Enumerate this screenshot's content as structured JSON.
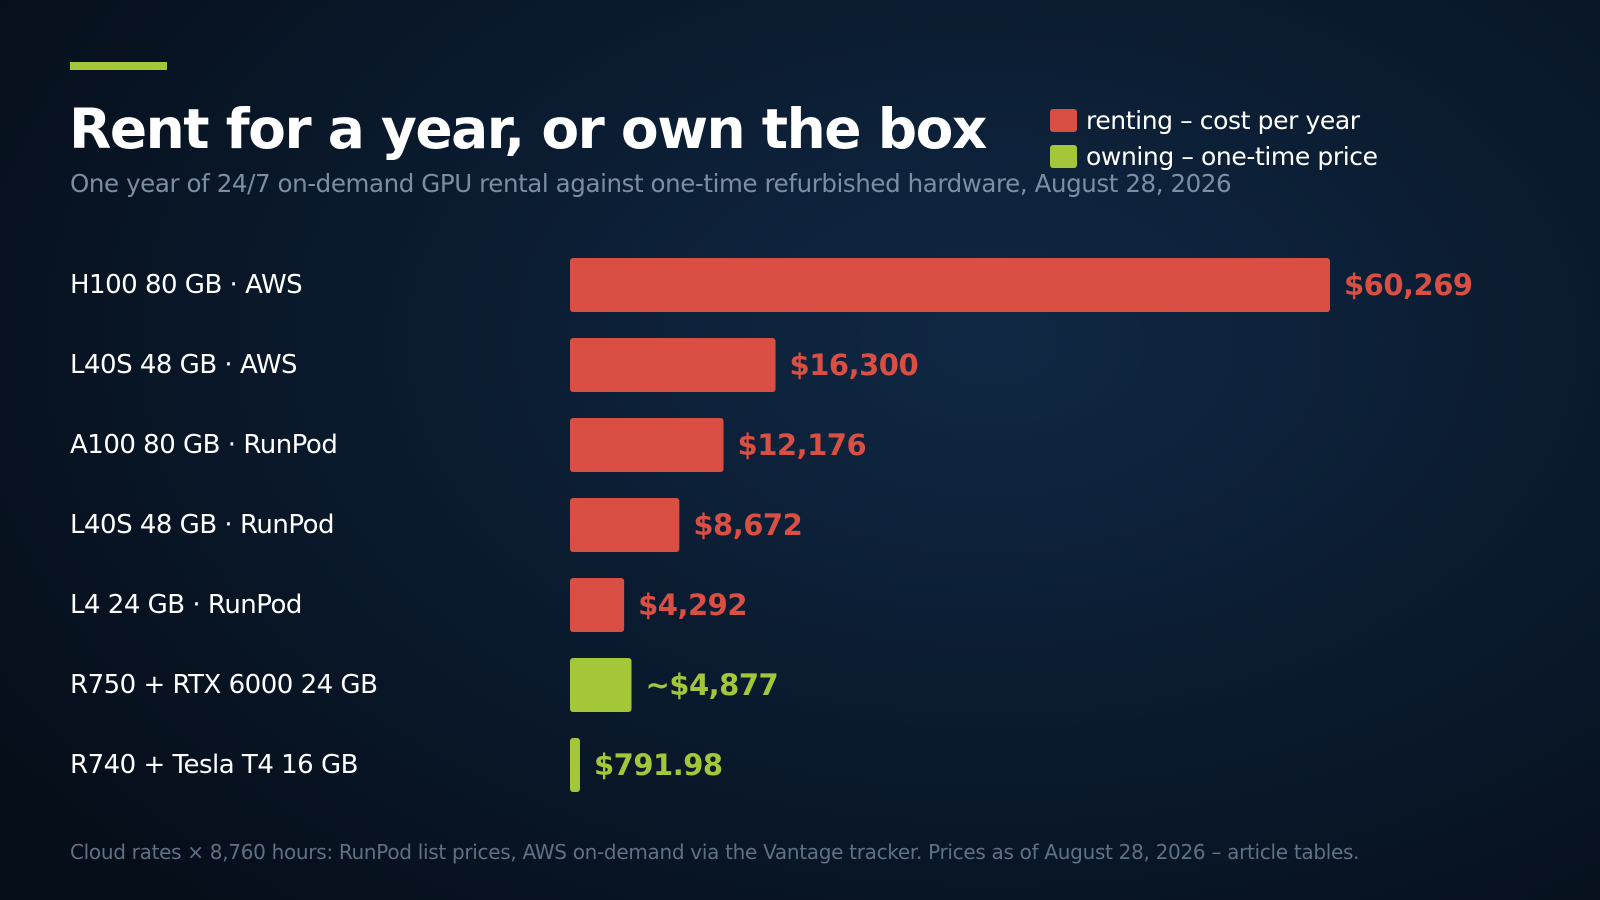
{
  "colors": {
    "accent": "#a4c639",
    "renting": "#d94f43",
    "owning": "#a4c639",
    "label": "#ffffff"
  },
  "header": {
    "title": "Rent for a year, or own the box",
    "subtitle": "One year of 24/7 on-demand GPU rental against one-time refurbished hardware, August 28, 2026"
  },
  "legend": [
    {
      "label": "renting – cost per year",
      "color": "#d94f43"
    },
    {
      "label": "owning – one-time price",
      "color": "#a4c639"
    }
  ],
  "footer": "Cloud rates × 8,760 hours: RunPod list prices, AWS on-demand via the Vantage tracker. Prices as of August 28, 2026 – article tables.",
  "chart_data": {
    "type": "bar",
    "orientation": "horizontal",
    "title": "Rent for a year, or own the box",
    "subtitle": "One year of 24/7 on-demand GPU rental against one-time refurbished hardware, August 28, 2026",
    "xlim": [
      0,
      60269
    ],
    "grid": false,
    "legend_position": "top-right",
    "bars": [
      {
        "gpu": "H100 80 GB",
        "provider": "AWS",
        "value": 60269,
        "value_label": "$60,269",
        "group": "renting"
      },
      {
        "gpu": "L40S 48 GB",
        "provider": "AWS",
        "value": 16300,
        "value_label": "$16,300",
        "group": "renting"
      },
      {
        "gpu": "A100 80 GB",
        "provider": "RunPod",
        "value": 12176,
        "value_label": "$12,176",
        "group": "renting"
      },
      {
        "gpu": "L40S 48 GB",
        "provider": "RunPod",
        "value": 8672,
        "value_label": "$8,672",
        "group": "renting"
      },
      {
        "gpu": "L4 24 GB",
        "provider": "RunPod",
        "value": 4292,
        "value_label": "$4,292",
        "group": "renting"
      },
      {
        "gpu": "R750 + RTX 6000 24 GB",
        "provider": "",
        "value": 4877,
        "value_label": "~$4,877",
        "group": "owning"
      },
      {
        "gpu": "R740 + Tesla T4 16 GB",
        "provider": "",
        "value": 791.98,
        "value_label": "$791.98",
        "group": "owning"
      }
    ]
  }
}
